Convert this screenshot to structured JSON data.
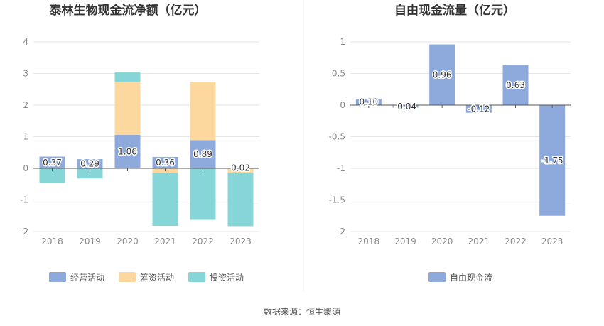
{
  "source_text": "数据来源：恒生聚源",
  "chart_data": [
    {
      "type": "bar",
      "stacked": true,
      "title": "泰林生物现金流净额（亿元）",
      "categories": [
        "2018",
        "2019",
        "2020",
        "2021",
        "2022",
        "2023"
      ],
      "ylim": [
        -2,
        4
      ],
      "yticks": [
        "4",
        "3",
        "2",
        "1",
        "0",
        "-1",
        "-2"
      ],
      "grid": true,
      "legend_position": "bottom",
      "series": [
        {
          "name": "经营活动",
          "color": "#8eaadc",
          "values": [
            0.37,
            0.29,
            1.06,
            0.36,
            0.89,
            0.02
          ],
          "labels": [
            "0.37",
            "0.29",
            "1.06",
            "0.36",
            "0.89",
            "0.02"
          ]
        },
        {
          "name": "筹资活动",
          "color": "#fdd89e",
          "values": [
            0,
            0,
            1.66,
            -0.14,
            1.85,
            -0.14
          ]
        },
        {
          "name": "投资活动",
          "color": "#86d5d7",
          "values": [
            -0.46,
            -0.32,
            0.33,
            -1.68,
            -1.63,
            -1.69
          ]
        }
      ]
    },
    {
      "type": "bar",
      "title": "自由现金流量（亿元）",
      "categories": [
        "2018",
        "2019",
        "2020",
        "2021",
        "2022",
        "2023"
      ],
      "ylim": [
        -2,
        1
      ],
      "yticks": [
        "1",
        "0.5",
        "0",
        "-0.5",
        "-1",
        "-1.5",
        "-2"
      ],
      "grid": true,
      "legend_position": "bottom",
      "series": [
        {
          "name": "自由现金流",
          "color": "#8eaadc",
          "values": [
            0.1,
            -0.04,
            0.96,
            -0.12,
            0.63,
            -1.75
          ],
          "labels": [
            "0.10",
            "-0.04",
            "0.96",
            "-0.12",
            "0.63",
            "-1.75"
          ]
        }
      ]
    }
  ]
}
